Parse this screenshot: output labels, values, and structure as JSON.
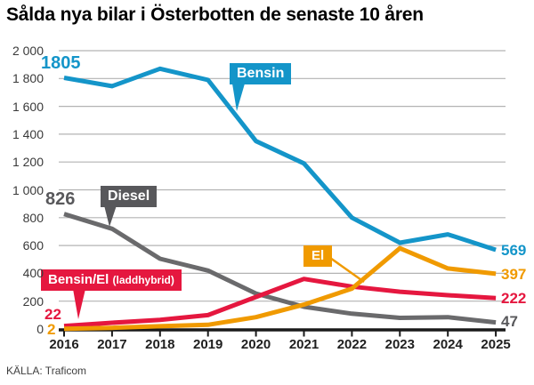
{
  "title": "Sålda nya bilar i Österbotten de senaste 10 åren",
  "source": "KÄLLA: Traficom",
  "chart_data": {
    "type": "line",
    "title": "Sålda nya bilar i Österbotten de senaste 10 åren",
    "xlabel": "",
    "ylabel": "",
    "ylim": [
      0,
      2000
    ],
    "ytick_step": 200,
    "grid": true,
    "x_ticks": [
      "2016",
      "2017",
      "2018",
      "2019",
      "2020",
      "2021",
      "2022",
      "2023",
      "2024",
      "2025"
    ],
    "y_ticks": [
      "2 000",
      "1 800",
      "1 600",
      "1 400",
      "1 200",
      "1 000",
      "800",
      "600",
      "400",
      "200",
      "0"
    ],
    "series": [
      {
        "name": "Bensin",
        "color": "#1495c9",
        "values": [
          1805,
          1745,
          1870,
          1790,
          1350,
          1190,
          800,
          620,
          680,
          569
        ],
        "first_value_label": "1805",
        "last_value_label": "569"
      },
      {
        "name": "Diesel",
        "color": "#6a6a6c",
        "badge_color": "#58585b",
        "values": [
          826,
          720,
          505,
          420,
          255,
          160,
          110,
          80,
          85,
          47
        ],
        "first_value_label": "826",
        "last_value_label": "47"
      },
      {
        "name": "Bensin/El (laddhybrid)",
        "color": "#e5173f",
        "values": [
          22,
          45,
          65,
          100,
          230,
          360,
          305,
          268,
          243,
          222
        ],
        "first_value_label": "22",
        "last_value_label": "222"
      },
      {
        "name": "El",
        "color": "#f09a00",
        "values": [
          2,
          8,
          20,
          30,
          85,
          175,
          290,
          580,
          435,
          397
        ],
        "first_value_label": "2",
        "last_value_label": "397"
      }
    ],
    "badges": {
      "bensin": "Bensin",
      "diesel": "Diesel",
      "hybrid_main": "Bensin/El",
      "hybrid_paren": "(laddhybrid)",
      "el": "El"
    }
  }
}
